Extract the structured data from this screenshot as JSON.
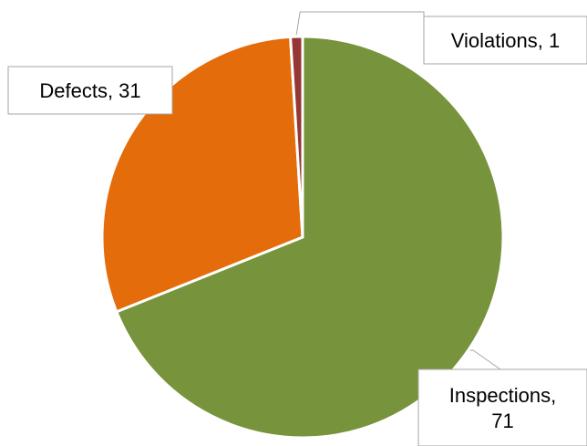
{
  "chart_data": {
    "type": "pie",
    "title": "",
    "slices": [
      {
        "label": "Inspections",
        "value": 71,
        "color": "#77933C",
        "display": "Inspections,|71"
      },
      {
        "label": "Defects",
        "value": 31,
        "color": "#E46C0A",
        "display": "Defects, 31"
      },
      {
        "label": "Violations",
        "value": 1,
        "color": "#953735",
        "display": "Violations, 1"
      }
    ],
    "legend": "none",
    "data_labels": "callout"
  }
}
